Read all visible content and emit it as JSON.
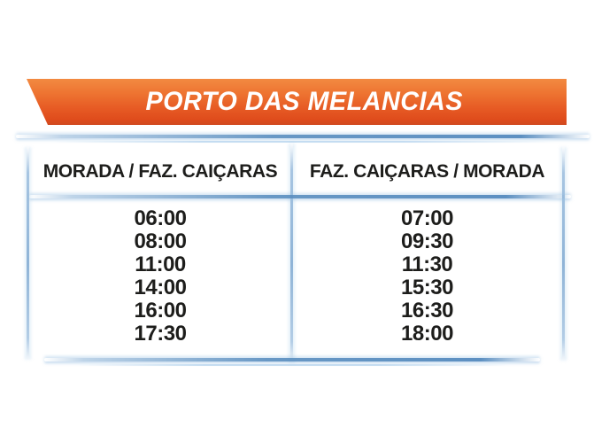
{
  "banner": {
    "title": "PORTO DAS MELANCIAS",
    "bg_gradient_top": "#f28a41",
    "bg_gradient_bottom": "#df4c1c",
    "text_color": "#ffffff"
  },
  "table": {
    "accent_color": "#5b8fc0",
    "glow_color": "#aacdeb",
    "text_color": "#1d1d1b",
    "columns": [
      {
        "header": "MORADA / FAZ. CAIÇARAS",
        "times": [
          "06:00",
          "08:00",
          "11:00",
          "14:00",
          "16:00",
          "17:30"
        ]
      },
      {
        "header": "FAZ. CAIÇARAS / MORADA",
        "times": [
          "07:00",
          "09:30",
          "11:30",
          "15:30",
          "16:30",
          "18:00"
        ]
      }
    ]
  }
}
